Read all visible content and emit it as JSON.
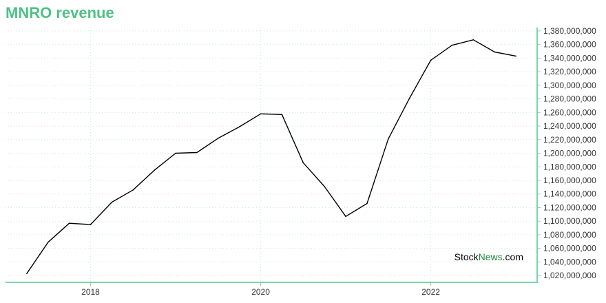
{
  "title": "MNRO revenue",
  "watermark": {
    "part1": "Stock",
    "part2": "News",
    "part3": ".com"
  },
  "colors": {
    "title": "#4fc187",
    "axis": "#7fd4a8",
    "grid": "#cfe9dc",
    "line": "#000000",
    "watermark_accent": "#1a8a3e"
  },
  "chart_data": {
    "type": "line",
    "title": "MNRO revenue",
    "xlabel": "",
    "ylabel": "",
    "x_tick_labels": [
      "2018",
      "2020",
      "2022"
    ],
    "y_tick_labels": [
      "1,020,000,000",
      "1,040,000,000",
      "1,060,000,000",
      "1,080,000,000",
      "1,100,000,000",
      "1,120,000,000",
      "1,140,000,000",
      "1,160,000,000",
      "1,180,000,000",
      "1,200,000,000",
      "1,220,000,000",
      "1,240,000,000",
      "1,260,000,000",
      "1,280,000,000",
      "1,300,000,000",
      "1,320,000,000",
      "1,340,000,000",
      "1,360,000,000",
      "1,380,000,000"
    ],
    "ylim": [
      1010000000,
      1385000000
    ],
    "xlim": [
      2017.0,
      2023.25
    ],
    "x_ticks": [
      2018,
      2020,
      2022
    ],
    "y_ticks": [
      1020000000,
      1040000000,
      1060000000,
      1080000000,
      1100000000,
      1120000000,
      1140000000,
      1160000000,
      1180000000,
      1200000000,
      1220000000,
      1240000000,
      1260000000,
      1280000000,
      1300000000,
      1320000000,
      1340000000,
      1360000000,
      1380000000
    ],
    "grid": true,
    "y_axis_position": "right",
    "series": [
      {
        "x": [
          2017.25,
          2017.5,
          2017.75,
          2018.0,
          2018.25,
          2018.5,
          2018.75,
          2019.0,
          2019.25,
          2019.5,
          2019.75,
          2020.0,
          2020.25,
          2020.5,
          2020.75,
          2021.0,
          2021.25,
          2021.5,
          2021.75,
          2022.0,
          2022.25,
          2022.5,
          2022.75,
          2023.0
        ],
        "values": [
          1023000000,
          1069000000,
          1097000000,
          1095000000,
          1128000000,
          1146000000,
          1175000000,
          1200000000,
          1201000000,
          1222000000,
          1239000000,
          1258000000,
          1257000000,
          1186000000,
          1151000000,
          1107000000,
          1126000000,
          1221000000,
          1281000000,
          1337000000,
          1359000000,
          1367000000,
          1349000000,
          1343000000
        ]
      }
    ]
  }
}
